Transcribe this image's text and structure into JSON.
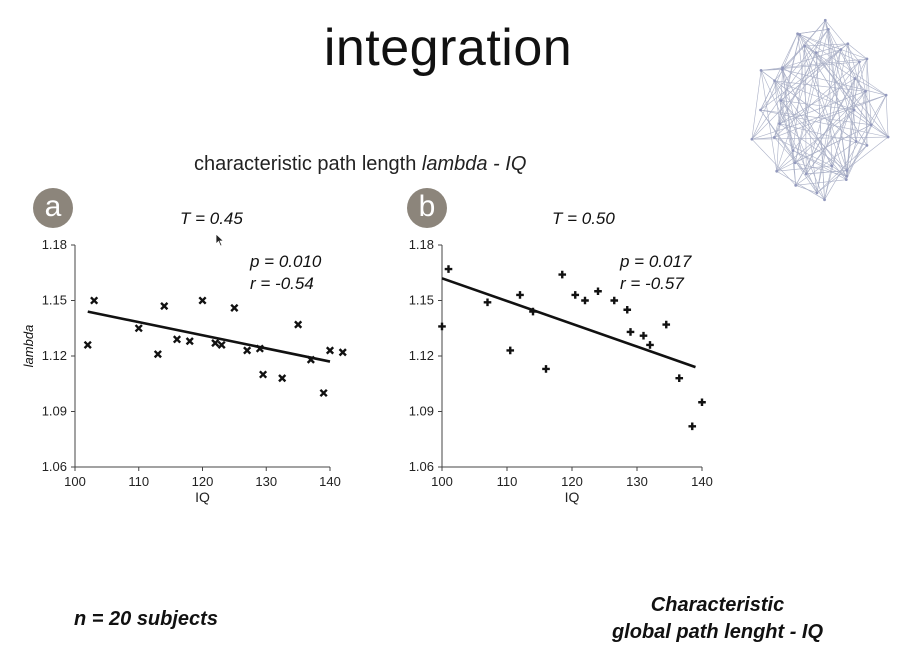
{
  "title": "integration",
  "subtitle": {
    "prefix": "characteristic path length ",
    "italic": "lambda - IQ"
  },
  "footer": {
    "subjects": "n = 20 subjects",
    "right_line1": "Characteristic",
    "right_line2": "global path lenght - IQ"
  },
  "ylabel": "lambda",
  "chart_data": [
    {
      "type": "scatter",
      "panel": "a",
      "threshold": "T = 0.45",
      "p": "p = 0.010",
      "r": "r = -0.54",
      "marker": "x",
      "xlabel": "IQ",
      "ylabel": "lambda",
      "xlim": [
        100,
        140
      ],
      "ylim": [
        1.06,
        1.18
      ],
      "xticks": [
        "100",
        "110",
        "120",
        "130",
        "140"
      ],
      "yticks": [
        "1.06",
        "1.09",
        "1.12",
        "1.15",
        "1.18"
      ],
      "points": [
        [
          102,
          1.126
        ],
        [
          103,
          1.15
        ],
        [
          110,
          1.135
        ],
        [
          113,
          1.121
        ],
        [
          114,
          1.147
        ],
        [
          116,
          1.129
        ],
        [
          118,
          1.128
        ],
        [
          120,
          1.15
        ],
        [
          122,
          1.127
        ],
        [
          123,
          1.126
        ],
        [
          125,
          1.146
        ],
        [
          127,
          1.123
        ],
        [
          129,
          1.124
        ],
        [
          129.5,
          1.11
        ],
        [
          132.5,
          1.108
        ],
        [
          135,
          1.137
        ],
        [
          137,
          1.118
        ],
        [
          139,
          1.1
        ],
        [
          140,
          1.123
        ],
        [
          142,
          1.122
        ]
      ],
      "fit": [
        [
          102,
          1.144
        ],
        [
          140,
          1.117
        ]
      ]
    },
    {
      "type": "scatter",
      "panel": "b",
      "threshold": "T = 0.50",
      "p": "p = 0.017",
      "r": "r = -0.57",
      "marker": "+",
      "xlabel": "IQ",
      "ylabel": "",
      "xlim": [
        100,
        140
      ],
      "ylim": [
        1.06,
        1.18
      ],
      "xticks": [
        "100",
        "110",
        "120",
        "130",
        "140"
      ],
      "yticks": [
        "1.06",
        "1.09",
        "1.12",
        "1.15",
        "1.18"
      ],
      "points": [
        [
          100,
          1.136
        ],
        [
          101,
          1.167
        ],
        [
          107,
          1.149
        ],
        [
          110.5,
          1.123
        ],
        [
          112,
          1.153
        ],
        [
          114,
          1.144
        ],
        [
          116,
          1.113
        ],
        [
          118.5,
          1.164
        ],
        [
          120.5,
          1.153
        ],
        [
          122,
          1.15
        ],
        [
          124,
          1.155
        ],
        [
          126.5,
          1.15
        ],
        [
          128.5,
          1.145
        ],
        [
          129,
          1.133
        ],
        [
          132,
          1.126
        ],
        [
          134.5,
          1.137
        ],
        [
          136.5,
          1.108
        ],
        [
          138.5,
          1.082
        ],
        [
          140,
          1.095
        ],
        [
          131,
          1.131
        ]
      ],
      "fit": [
        [
          100,
          1.162
        ],
        [
          139,
          1.114
        ]
      ]
    }
  ]
}
